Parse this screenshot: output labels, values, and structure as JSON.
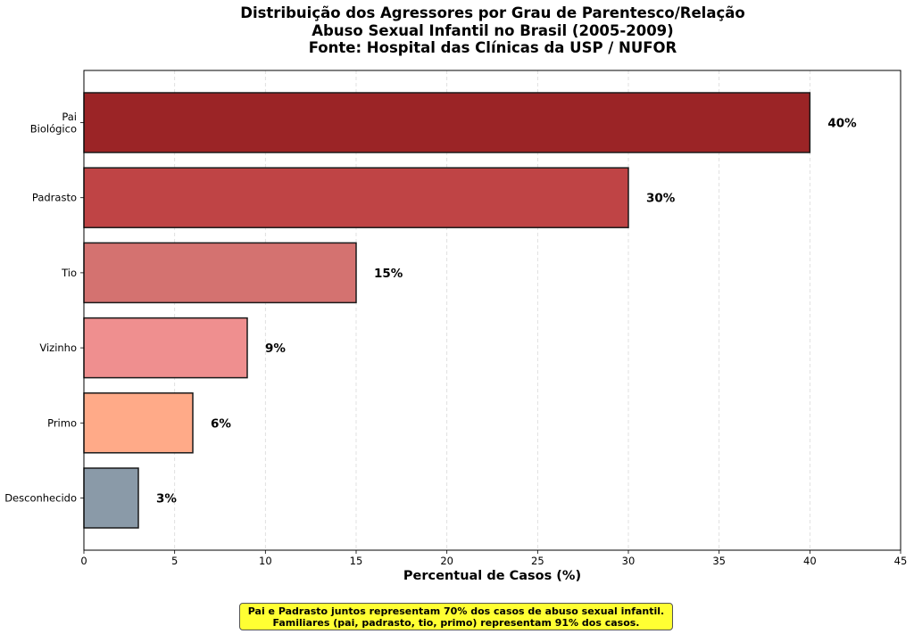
{
  "chart_data": {
    "type": "bar",
    "orientation": "horizontal",
    "title_lines": [
      "Distribuição dos Agressores por Grau de Parentesco/Relação",
      "Abuso Sexual Infantil no Brasil (2005-2009)",
      "Fonte: Hospital das Clínicas da USP / NUFOR"
    ],
    "xlabel": "Percentual de Casos (%)",
    "ylabel": "",
    "xlim": [
      0,
      45
    ],
    "x_ticks": [
      0,
      5,
      10,
      15,
      20,
      25,
      30,
      35,
      40,
      45
    ],
    "grid": "x-dashed",
    "bars": [
      {
        "label_lines": [
          "Pai",
          "Biológico"
        ],
        "value": 40,
        "value_label": "40%",
        "color": "#9b2426"
      },
      {
        "label_lines": [
          "Padrasto"
        ],
        "value": 30,
        "value_label": "30%",
        "color": "#bf4445"
      },
      {
        "label_lines": [
          "Tio"
        ],
        "value": 15,
        "value_label": "15%",
        "color": "#d47270"
      },
      {
        "label_lines": [
          "Vizinho"
        ],
        "value": 9,
        "value_label": "9%",
        "color": "#ef8f8f"
      },
      {
        "label_lines": [
          "Primo"
        ],
        "value": 6,
        "value_label": "6%",
        "color": "#ffaa88"
      },
      {
        "label_lines": [
          "Desconhecido"
        ],
        "value": 3,
        "value_label": "3%",
        "color": "#8a9aa8"
      }
    ]
  },
  "note": {
    "line1": "Pai e Padrasto juntos representam 70% dos casos de abuso sexual infantil.",
    "line2": "Familiares (pai, padrasto, tio, primo) representam 91% dos casos."
  }
}
